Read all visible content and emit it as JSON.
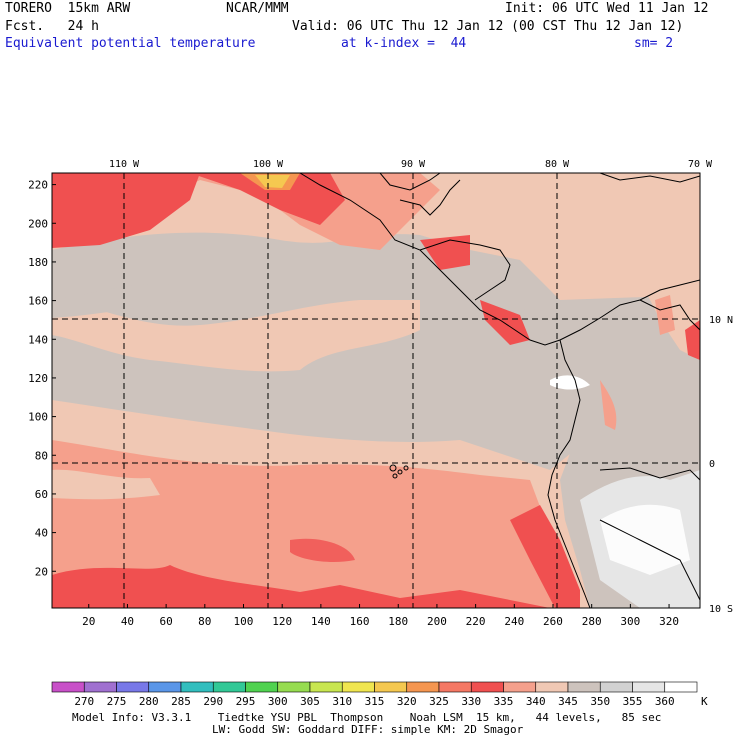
{
  "header": {
    "model": "TORERO  15km ARW",
    "org": "NCAR/MMM",
    "init": "Init: 06 UTC Wed 11 Jan 12",
    "fcst": "Fcst.   24 h",
    "valid": "Valid: 06 UTC Thu 12 Jan 12 (00 CST Thu 12 Jan 12)",
    "field": "Equivalent potential temperature",
    "level": "at k-index =  44",
    "smooth": "sm= 2"
  },
  "map": {
    "lon_labels": [
      "110 W",
      "100 W",
      "90 W",
      "80 W",
      "70 W"
    ],
    "lat_labels": [
      "10 N",
      "0",
      "10 S"
    ],
    "y_ticks": [
      "20",
      "40",
      "60",
      "80",
      "100",
      "120",
      "140",
      "160",
      "180",
      "200",
      "220"
    ],
    "x_ticks": [
      "20",
      "40",
      "60",
      "80",
      "100",
      "120",
      "140",
      "160",
      "180",
      "200",
      "220",
      "240",
      "260",
      "280",
      "300",
      "320"
    ]
  },
  "colorbar": {
    "unit": "K",
    "levels": [
      "270",
      "275",
      "280",
      "285",
      "290",
      "295",
      "300",
      "305",
      "310",
      "315",
      "320",
      "325",
      "330",
      "335",
      "340",
      "345",
      "350",
      "355",
      "360"
    ],
    "colors": [
      "#c850c8",
      "#a070d0",
      "#7878e8",
      "#5a96e8",
      "#32bebe",
      "#32c896",
      "#50d250",
      "#96dc50",
      "#c8e650",
      "#f0e650",
      "#f5c850",
      "#f59650",
      "#f57864",
      "#f05050",
      "#f5a08c",
      "#f0c8b4",
      "#cdc3bd",
      "#d2d2d2",
      "#e6e6e6",
      "#ffffff"
    ]
  },
  "footer": {
    "line1": "Model Info: V3.3.1    Tiedtke YSU PBL  Thompson    Noah LSM  15 km,   44 levels,   85 sec",
    "line2": "LW: Godd SW: Goddard DIFF: simple KM: 2D Smagor"
  }
}
